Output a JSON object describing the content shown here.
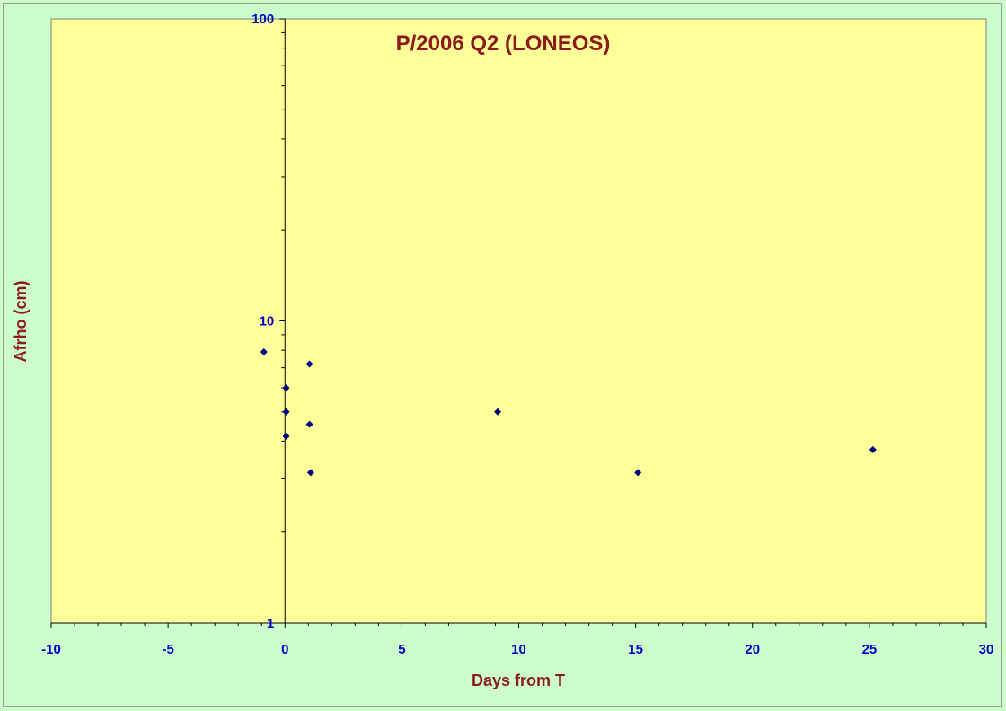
{
  "chart_data": {
    "type": "scatter",
    "title": "P/2006 Q2 (LONEOS)",
    "xlabel": "Days from T",
    "ylabel": "Afrho (cm)",
    "xlim": [
      -10,
      30
    ],
    "ylim": [
      1,
      100
    ],
    "y_scale": "log",
    "x_ticks": [
      "-10",
      "-5",
      "0",
      "5",
      "10",
      "15",
      "20",
      "25",
      "30"
    ],
    "y_ticks": [
      "1",
      "10",
      "100"
    ],
    "series": [
      {
        "marker": "diamond",
        "color": "#000080",
        "points": [
          {
            "x": -0.9,
            "y": 7.9
          },
          {
            "x": 0.05,
            "y": 6.0
          },
          {
            "x": 0.05,
            "y": 5.0
          },
          {
            "x": 0.05,
            "y": 4.15
          },
          {
            "x": 1.05,
            "y": 7.2
          },
          {
            "x": 1.05,
            "y": 4.55
          },
          {
            "x": 1.1,
            "y": 3.15
          },
          {
            "x": 9.1,
            "y": 5.0
          },
          {
            "x": 15.1,
            "y": 3.15
          },
          {
            "x": 25.15,
            "y": 3.75
          }
        ]
      }
    ]
  },
  "colors": {
    "page_background": "#ccffcc",
    "plot_background": "#ffff99",
    "text_dark_red": "#8b1a1a",
    "tick_blue": "#0000cc",
    "marker_navy": "#000080"
  }
}
